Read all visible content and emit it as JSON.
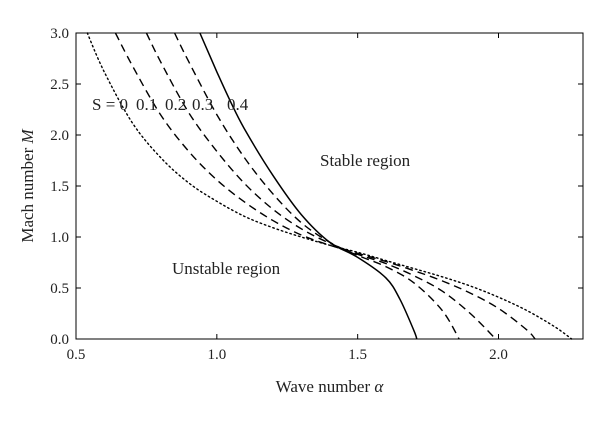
{
  "chart_data": {
    "type": "line",
    "xlabel": "Wave number",
    "xlabel_symbol": "α",
    "ylabel": "Mach number",
    "ylabel_symbol": "M",
    "xlim": [
      0.5,
      2.3
    ],
    "ylim": [
      0.0,
      3.0
    ],
    "x_ticks": [
      0.5,
      1.0,
      1.5,
      2.0
    ],
    "x_tick_labels": [
      "0.5",
      "1.0",
      "1.5",
      "2.0"
    ],
    "y_ticks": [
      0.0,
      0.5,
      1.0,
      1.5,
      2.0,
      2.5,
      3.0
    ],
    "y_tick_labels": [
      "0.0",
      "0.5",
      "1.0",
      "1.5",
      "2.0",
      "2.5",
      "3.0"
    ],
    "grid": false,
    "legend": "none",
    "annotations": {
      "s_prefix": "S = 0",
      "s_values": [
        "0.1",
        "0.2",
        "0.3",
        "0.4"
      ],
      "stable": "Stable region",
      "unstable": "Unstable region"
    },
    "series": [
      {
        "style": "dotted",
        "x": [
          0.54,
          0.6,
          0.7,
          0.8,
          0.9,
          1.0,
          1.1,
          1.2,
          1.3,
          1.4,
          1.5,
          1.6,
          1.7,
          1.8,
          1.9,
          2.0,
          2.1,
          2.2,
          2.26
        ],
        "y": [
          3.0,
          2.62,
          2.12,
          1.78,
          1.53,
          1.35,
          1.2,
          1.09,
          1.0,
          0.92,
          0.85,
          0.77,
          0.69,
          0.61,
          0.52,
          0.41,
          0.28,
          0.12,
          0.0
        ]
      },
      {
        "style": "dashed",
        "x": [
          0.64,
          0.7,
          0.8,
          0.9,
          1.0,
          1.1,
          1.2,
          1.3,
          1.4,
          1.5,
          1.6,
          1.7,
          1.8,
          1.9,
          2.0,
          2.1,
          2.13
        ],
        "y": [
          3.0,
          2.68,
          2.2,
          1.84,
          1.56,
          1.34,
          1.16,
          1.02,
          0.92,
          0.84,
          0.76,
          0.67,
          0.57,
          0.45,
          0.3,
          0.09,
          0.0
        ]
      },
      {
        "style": "dashed",
        "x": [
          0.75,
          0.8,
          0.9,
          1.0,
          1.1,
          1.2,
          1.3,
          1.4,
          1.5,
          1.6,
          1.7,
          1.8,
          1.9,
          1.99
        ],
        "y": [
          3.0,
          2.72,
          2.22,
          1.84,
          1.52,
          1.27,
          1.08,
          0.94,
          0.83,
          0.74,
          0.62,
          0.47,
          0.25,
          0.0
        ]
      },
      {
        "style": "dashed",
        "x": [
          0.85,
          0.9,
          1.0,
          1.1,
          1.2,
          1.3,
          1.4,
          1.5,
          1.6,
          1.7,
          1.8,
          1.86
        ],
        "y": [
          3.0,
          2.72,
          2.2,
          1.77,
          1.42,
          1.14,
          0.95,
          0.82,
          0.71,
          0.55,
          0.28,
          0.0
        ]
      },
      {
        "style": "solid",
        "x": [
          0.94,
          1.0,
          1.05,
          1.1,
          1.2,
          1.3,
          1.4,
          1.5,
          1.6,
          1.65,
          1.7,
          1.71
        ],
        "y": [
          3.0,
          2.62,
          2.32,
          2.05,
          1.6,
          1.22,
          0.95,
          0.8,
          0.6,
          0.39,
          0.08,
          0.0
        ]
      }
    ]
  }
}
